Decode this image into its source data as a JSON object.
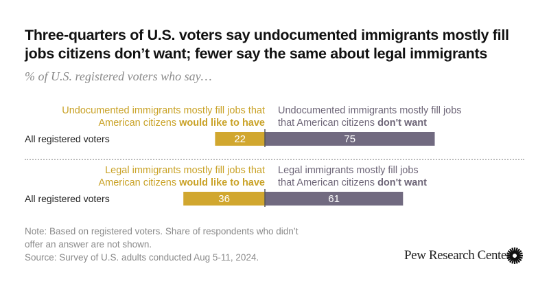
{
  "title": "Three-quarters of U.S. voters say undocumented immigrants mostly fill jobs citizens don’t want; fewer say the same about legal immigrants",
  "subtitle": "% of U.S. registered voters who say…",
  "colors": {
    "left": "#d1a72f",
    "right": "#716a80"
  },
  "chart_data": {
    "type": "bar",
    "orientation": "horizontal-diverging",
    "title": "Three-quarters of U.S. voters say undocumented immigrants mostly fill jobs citizens don’t want; fewer say the same about legal immigrants",
    "xlim": [
      -40,
      80
    ],
    "groups": [
      {
        "left_label": "Undocumented immigrants mostly fill jobs that",
        "left_label2": "American citizens ",
        "left_bold": "would like to have",
        "right_label": "Undocumented immigrants mostly fill jobs",
        "right_label2": "that American citizens ",
        "right_bold": "don't want",
        "category": "All registered voters",
        "left_value": 22,
        "right_value": 75
      },
      {
        "left_label": "Legal immigrants mostly fill jobs that",
        "left_label2": "American citizens ",
        "left_bold": "would like to have",
        "right_label": "Legal immigrants mostly fill jobs",
        "right_label2": "that American citizens ",
        "right_bold": "don't want",
        "category": "All registered voters",
        "left_value": 36,
        "right_value": 61
      }
    ]
  },
  "note": [
    "Note: Based on registered voters. Share of respondents who didn’t",
    "offer an answer are not shown.",
    "Source: Survey of U.S. adults conducted Aug 5-11, 2024."
  ],
  "logo": "Pew Research Center"
}
